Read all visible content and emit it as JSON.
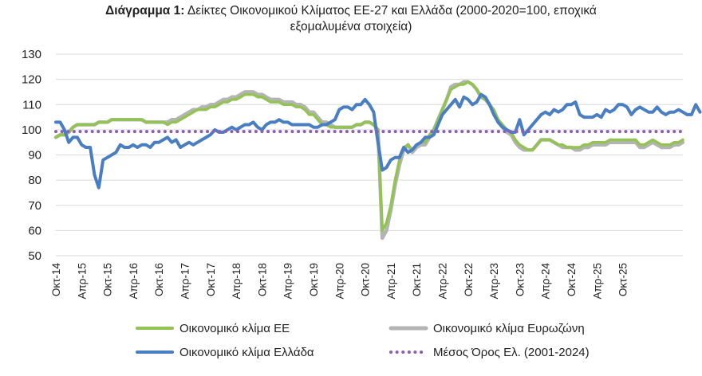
{
  "title": {
    "bold": "Διάγραμμα 1:",
    "line1": "Δείκτες Οικονομικού Κλίματος ΕΕ-27 και Ελλάδα (2000-2020=100, εποχικά",
    "line2": "εξομαλυμένα στοιχεία)"
  },
  "chart_data": {
    "type": "line",
    "title": "Διάγραμμα 1: Δείκτες Οικονομικού Κλίματος ΕΕ-27 και Ελλάδα (2000-2020=100, εποχικά εξομαλυμένα στοιχεία)",
    "xlabel": "",
    "ylabel": "",
    "ylim": [
      50,
      130
    ],
    "yticks": [
      50,
      60,
      70,
      80,
      90,
      100,
      110,
      120,
      130
    ],
    "grid": "horizontal",
    "legend_position": "bottom",
    "x_start": "Οκτ-14",
    "x_step": "1 month",
    "x_tick_labels": [
      "Οκτ-14",
      "Απρ-15",
      "Οκτ-15",
      "Απρ-16",
      "Οκτ-16",
      "Απρ-17",
      "Οκτ-17",
      "Απρ-18",
      "Οκτ-18",
      "Απρ-19",
      "Οκτ-19",
      "Απρ-20",
      "Οκτ-20",
      "Απρ-21",
      "Οκτ-21",
      "Απρ-22",
      "Οκτ-22",
      "Απρ-23",
      "Οκτ-23",
      "Απρ-24",
      "Οκτ-24",
      "Απρ-25",
      "Οκτ-25"
    ],
    "series": [
      {
        "name": "Οικονομικό κλίμα ΕΕ",
        "color": "#92c353",
        "values": [
          97,
          98,
          98,
          99,
          101,
          102,
          102,
          102,
          102,
          102,
          103,
          103,
          103,
          104,
          104,
          104,
          104,
          104,
          104,
          104,
          104,
          103,
          103,
          103,
          103,
          103,
          102,
          103,
          103,
          104,
          105,
          106,
          107,
          108,
          108,
          108,
          109,
          109,
          110,
          111,
          111,
          112,
          112,
          113,
          114,
          114,
          114,
          113,
          113,
          112,
          111,
          111,
          111,
          110,
          110,
          110,
          109,
          109,
          108,
          106,
          106,
          104,
          102,
          102,
          101,
          101,
          101,
          101,
          101,
          101,
          102,
          102,
          103,
          103,
          102,
          100,
          60,
          63,
          70,
          80,
          88,
          93,
          94,
          92,
          94,
          95,
          95,
          98,
          100,
          104,
          108,
          112,
          116,
          117,
          118,
          118,
          119,
          118,
          116,
          113,
          112,
          110,
          108,
          104,
          102,
          100,
          99,
          96,
          94,
          93,
          92,
          92,
          94,
          96,
          96,
          96,
          95,
          94,
          94,
          93,
          93,
          93,
          93,
          94,
          94,
          95,
          95,
          95,
          95,
          96,
          96,
          96,
          96,
          96,
          96,
          96,
          94,
          94,
          95,
          96,
          95,
          94,
          94,
          94,
          95,
          95,
          96
        ]
      },
      {
        "name": "Οικονομικό κλίμα Ευρωζώνη",
        "color": "#b4b4b4",
        "values": [
          97,
          98,
          98,
          99,
          101,
          102,
          102,
          102,
          102,
          102,
          103,
          103,
          103,
          104,
          104,
          104,
          104,
          104,
          104,
          104,
          104,
          103,
          103,
          103,
          103,
          103,
          103,
          104,
          104,
          105,
          106,
          107,
          108,
          108,
          109,
          109,
          110,
          110,
          111,
          112,
          112,
          113,
          113,
          114,
          115,
          115,
          115,
          114,
          114,
          113,
          112,
          112,
          112,
          111,
          111,
          111,
          110,
          110,
          109,
          107,
          107,
          105,
          103,
          103,
          102,
          101,
          101,
          101,
          101,
          101,
          102,
          102,
          103,
          103,
          102,
          100,
          57,
          60,
          68,
          78,
          86,
          92,
          94,
          91,
          93,
          94,
          94,
          97,
          100,
          104,
          108,
          112,
          117,
          118,
          118,
          119,
          119,
          118,
          116,
          113,
          112,
          110,
          107,
          103,
          101,
          99,
          98,
          95,
          93,
          92,
          92,
          92,
          94,
          96,
          96,
          96,
          95,
          94,
          93,
          93,
          93,
          92,
          92,
          93,
          93,
          94,
          94,
          94,
          94,
          95,
          95,
          95,
          95,
          95,
          95,
          95,
          93,
          93,
          94,
          95,
          94,
          93,
          93,
          93,
          94,
          94,
          95
        ]
      },
      {
        "name": "Οικονομικό κλίμα Ελλάδα",
        "color": "#4a7ec2",
        "values": [
          103,
          103,
          100,
          95,
          97,
          97,
          94,
          93,
          93,
          82,
          77,
          88,
          89,
          90,
          91,
          94,
          93,
          93,
          94,
          93,
          94,
          94,
          93,
          95,
          95,
          96,
          97,
          95,
          96,
          93,
          94,
          95,
          94,
          95,
          96,
          97,
          98,
          100,
          99,
          99,
          100,
          101,
          100,
          101,
          102,
          102,
          103,
          101,
          100,
          102,
          103,
          103,
          104,
          103,
          103,
          102,
          102,
          102,
          102,
          102,
          101,
          101,
          102,
          102,
          103,
          104,
          108,
          109,
          109,
          108,
          110,
          110,
          112,
          110,
          107,
          95,
          84,
          85,
          88,
          89,
          89,
          93,
          91,
          92,
          94,
          95,
          97,
          97,
          98,
          102,
          106,
          108,
          110,
          112,
          109,
          113,
          112,
          110,
          111,
          114,
          113,
          110,
          106,
          103,
          101,
          100,
          99,
          99,
          104,
          98,
          100,
          102,
          104,
          106,
          107,
          106,
          108,
          107,
          108,
          110,
          110,
          111,
          106,
          105,
          105,
          105,
          106,
          105,
          108,
          107,
          108,
          110,
          110,
          109,
          106,
          108,
          109,
          108,
          107,
          107,
          109,
          107,
          106,
          107,
          107,
          108,
          107,
          106,
          106,
          110,
          107
        ]
      },
      {
        "name": "Μέσος Όρος Ελ. (2001-2024)",
        "color": "#8e5fb0",
        "style": "dotted",
        "constant": 99.3
      }
    ]
  }
}
